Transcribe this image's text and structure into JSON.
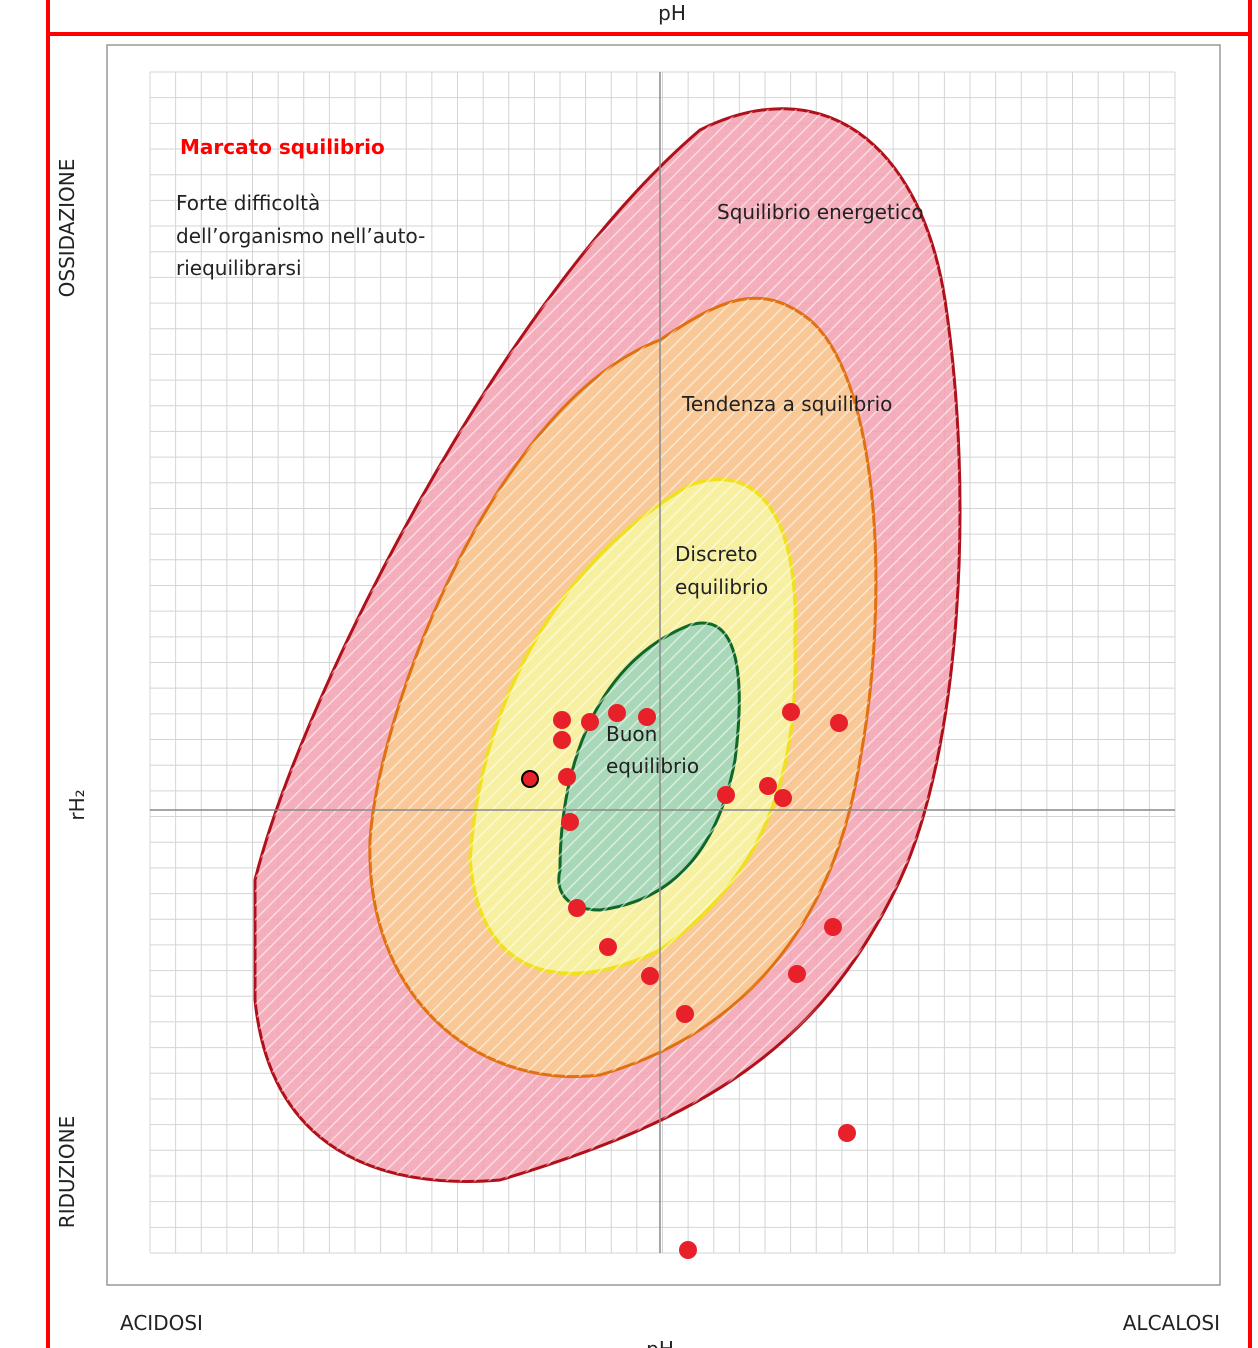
{
  "header": {
    "title": "pH"
  },
  "axes": {
    "x_label": "pH",
    "x_left": "ACIDOSI",
    "x_right": "ALCALOSI",
    "y_label": "rH₂",
    "y_top": "OSSIDAZIONE",
    "y_bottom": "RIDUZIONE"
  },
  "zones": {
    "outer": {
      "title": "Marcato squilibrio",
      "note": [
        "Forte difficoltà",
        "dell’organismo nell’auto-",
        "riequilibrarsi"
      ]
    },
    "red": "Squilibrio energetico",
    "orange": "Tendenza a squilibrio",
    "yellow": [
      "Discreto",
      "equilibrio"
    ],
    "green": [
      "Buon",
      "equilibrio"
    ]
  }
}
